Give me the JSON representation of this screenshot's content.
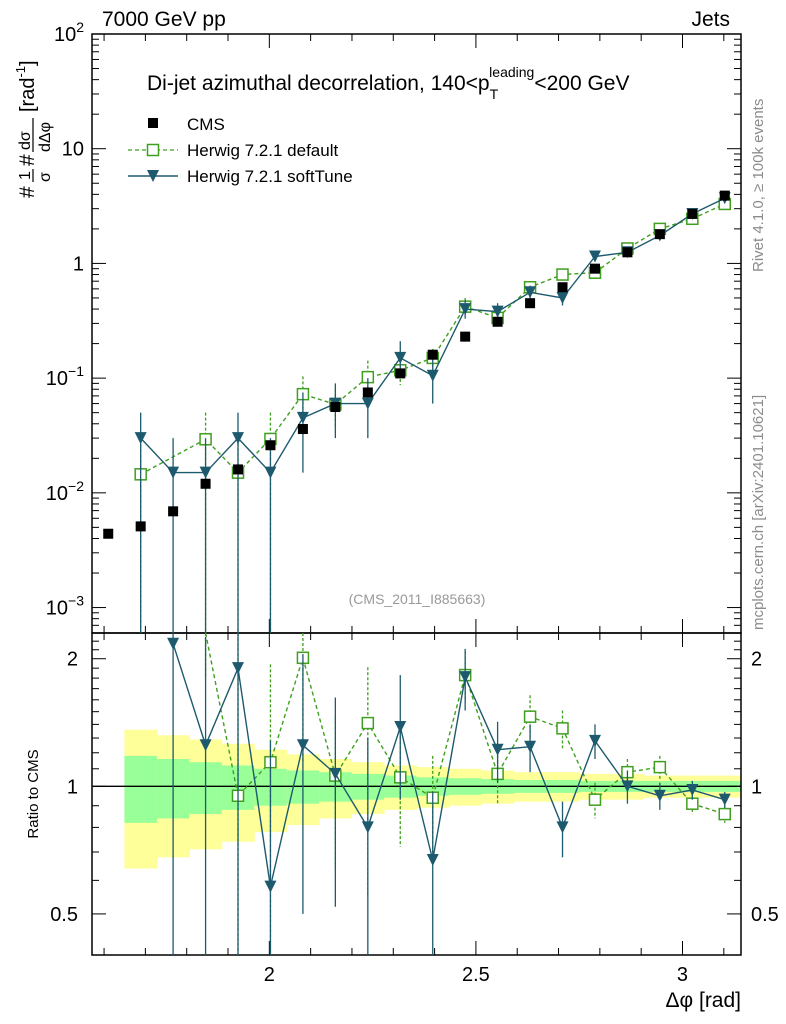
{
  "header": {
    "left": "7000 GeV pp",
    "right": "Jets"
  },
  "side_text": {
    "rivet": "Rivet 4.1.0, ≥ 100k events",
    "mcplots": "mcplots.cern.ch [arXiv:2401.10621]"
  },
  "chart_data": {
    "type": "scatter",
    "title": "Di-jet azimuthal decorrelation, 140<p_T^leading<200 GeV",
    "title_parts": {
      "pre": "Di-jet azimuthal decorrelation, 140<p",
      "sub": "T",
      "sup": "leading",
      "post": "<200 GeV"
    },
    "analysis_label": "(CMS_2011_I885663)",
    "xlabel": "Δφ [rad]",
    "ylabel_parts": {
      "hash1": "#",
      "one": "1",
      "sigma": "σ",
      "hash2": "#",
      "dsigma": "dσ",
      "ddphi": "dΔφ",
      "unit": "[rad",
      "unit_sup": "-1",
      "unit_close": "]"
    },
    "ratio_ylabel": "Ratio to CMS",
    "xlim": [
      1.5708,
      3.1416
    ],
    "ylim": [
      0.0006,
      100
    ],
    "ratio_ylim": [
      0.4,
      2.3
    ],
    "x_ticks": [
      2,
      2.5,
      3
    ],
    "x_tick_labels": [
      "2",
      "2.5",
      "3"
    ],
    "y_ticks": [
      0.001,
      0.01,
      0.1,
      1,
      10,
      100
    ],
    "y_tick_labels": [
      {
        "base": "10",
        "exp": "−3"
      },
      {
        "base": "10",
        "exp": "−2"
      },
      {
        "base": "10",
        "exp": "−1"
      },
      {
        "base": "1",
        "exp": ""
      },
      {
        "base": "10",
        "exp": ""
      },
      {
        "base": "10",
        "exp": "2"
      }
    ],
    "ratio_y_ticks": [
      0.5,
      1,
      2
    ],
    "ratio_y_tick_labels": [
      "0.5",
      "1",
      "2"
    ],
    "legend": [
      {
        "name": "CMS",
        "style": "data"
      },
      {
        "name": "Herwig 7.2.1 default",
        "style": "default"
      },
      {
        "name": "Herwig 7.2.1 softTune",
        "style": "soft"
      }
    ],
    "colors": {
      "data": "#000000",
      "default": "#3f9f1f",
      "soft": "#1d5a6e",
      "band_outer": "#ffff99",
      "band_inner": "#99ff99"
    },
    "x": [
      1.6101,
      1.6886,
      1.7671,
      1.8457,
      1.9242,
      2.0027,
      2.0813,
      2.1598,
      2.2384,
      2.3169,
      2.3955,
      2.474,
      2.5525,
      2.6311,
      2.7096,
      2.7882,
      2.8667,
      2.9452,
      3.0238,
      3.1023
    ],
    "x_edges": [
      1.5708,
      1.6493,
      1.7279,
      1.8064,
      1.885,
      1.9635,
      2.042,
      2.1206,
      2.1991,
      2.2777,
      2.3562,
      2.4347,
      2.5133,
      2.5918,
      2.6704,
      2.7489,
      2.8274,
      2.906,
      2.9845,
      3.0631,
      3.1416
    ],
    "series": [
      {
        "name": "CMS",
        "values": [
          0.0044,
          0.0051,
          0.0069,
          0.012,
          0.016,
          0.026,
          0.036,
          0.056,
          0.075,
          0.11,
          0.16,
          0.23,
          0.31,
          0.45,
          0.62,
          0.9,
          1.25,
          1.8,
          2.7,
          3.9
        ]
      },
      {
        "name": "Herwig 7.2.1 default",
        "values": [
          null,
          0.0145,
          null,
          0.0293,
          0.015,
          0.0295,
          0.0725,
          0.059,
          0.102,
          0.117,
          0.15,
          0.42,
          0.335,
          0.62,
          0.8,
          0.83,
          1.35,
          2.0,
          2.45,
          3.3
        ],
        "err_lo": [
          null,
          0.0145,
          null,
          0.0293,
          0.015,
          0.0295,
          0.031,
          0.022,
          0.026,
          0.03,
          0.03,
          0.06,
          0.05,
          0.07,
          0.08,
          0.08,
          0.1,
          0.12,
          0.15,
          0.2
        ],
        "err_hi": [
          null,
          0.0145,
          null,
          0.0207,
          0.015,
          0.0205,
          0.031,
          0.022,
          0.04,
          0.03,
          0.03,
          0.08,
          0.06,
          0.08,
          0.09,
          0.09,
          0.12,
          0.15,
          0.18,
          0.25
        ]
      },
      {
        "name": "Herwig 7.2.1 softTune",
        "values": [
          null,
          0.03,
          0.015,
          0.015,
          0.03,
          0.015,
          0.045,
          0.06,
          0.06,
          0.15,
          0.105,
          0.4,
          0.38,
          0.56,
          0.5,
          1.15,
          1.25,
          1.75,
          2.7,
          3.7
        ],
        "err_lo": [
          null,
          0.03,
          0.015,
          0.015,
          0.03,
          0.015,
          0.03,
          0.03,
          0.03,
          0.05,
          0.045,
          0.07,
          0.06,
          0.07,
          0.07,
          0.1,
          0.12,
          0.15,
          0.18,
          0.25
        ],
        "err_hi": [
          null,
          0.02,
          0.015,
          0.015,
          0.02,
          0.015,
          0.03,
          0.03,
          0.04,
          0.06,
          0.045,
          0.08,
          0.07,
          0.08,
          0.08,
          0.12,
          0.14,
          0.18,
          0.2,
          0.3
        ]
      }
    ],
    "ratio_default": {
      "values": [
        null,
        null,
        null,
        2.4,
        0.95,
        1.14,
        2.01,
        1.06,
        1.41,
        1.05,
        0.94,
        1.83,
        1.07,
        1.46,
        1.37,
        0.93,
        1.08,
        1.11,
        0.91,
        0.86
      ],
      "err_lo": [
        null,
        null,
        null,
        0.6,
        0.95,
        1.14,
        0.87,
        0.42,
        0.86,
        0.33,
        0.24,
        0.25,
        0.16,
        0.17,
        0.14,
        0.09,
        0.08,
        0.07,
        0.05,
        0.04
      ],
      "err_hi": [
        null,
        null,
        null,
        0,
        1.5,
        0.8,
        0.87,
        0.4,
        0.5,
        0.3,
        0.24,
        0.25,
        0.18,
        0.18,
        0.14,
        0.09,
        0.08,
        0.07,
        0.05,
        0.04
      ]
    },
    "ratio_soft": {
      "values": [
        null,
        null,
        2.17,
        1.25,
        1.9,
        0.58,
        1.25,
        1.07,
        0.8,
        1.38,
        0.67,
        1.81,
        1.22,
        1.24,
        0.8,
        1.28,
        1.0,
        0.95,
        0.98,
        0.93
      ],
      "err_lo": [
        null,
        null,
        2.0,
        1.0,
        1.6,
        0.58,
        0.75,
        0.55,
        0.42,
        0.45,
        0.3,
        0.3,
        0.2,
        0.16,
        0.12,
        0.12,
        0.09,
        0.07,
        0.05,
        0.04
      ],
      "err_hi": [
        null,
        null,
        0.3,
        1.0,
        0.4,
        0.7,
        0.8,
        0.55,
        0.5,
        0.45,
        0.3,
        0.3,
        0.2,
        0.16,
        0.12,
        0.12,
        0.09,
        0.07,
        0.05,
        0.04
      ]
    },
    "band_outer": [
      0.4,
      0.36,
      0.32,
      0.29,
      0.26,
      0.22,
      0.19,
      0.16,
      0.14,
      0.12,
      0.11,
      0.1,
      0.09,
      0.08,
      0.08,
      0.07,
      0.07,
      0.06,
      0.06,
      0.06
    ],
    "band_inner": [
      0.2,
      0.18,
      0.16,
      0.14,
      0.12,
      0.1,
      0.09,
      0.08,
      0.07,
      0.06,
      0.05,
      0.045,
      0.04,
      0.035,
      0.035,
      0.03,
      0.03,
      0.03,
      0.03,
      0.03
    ]
  }
}
